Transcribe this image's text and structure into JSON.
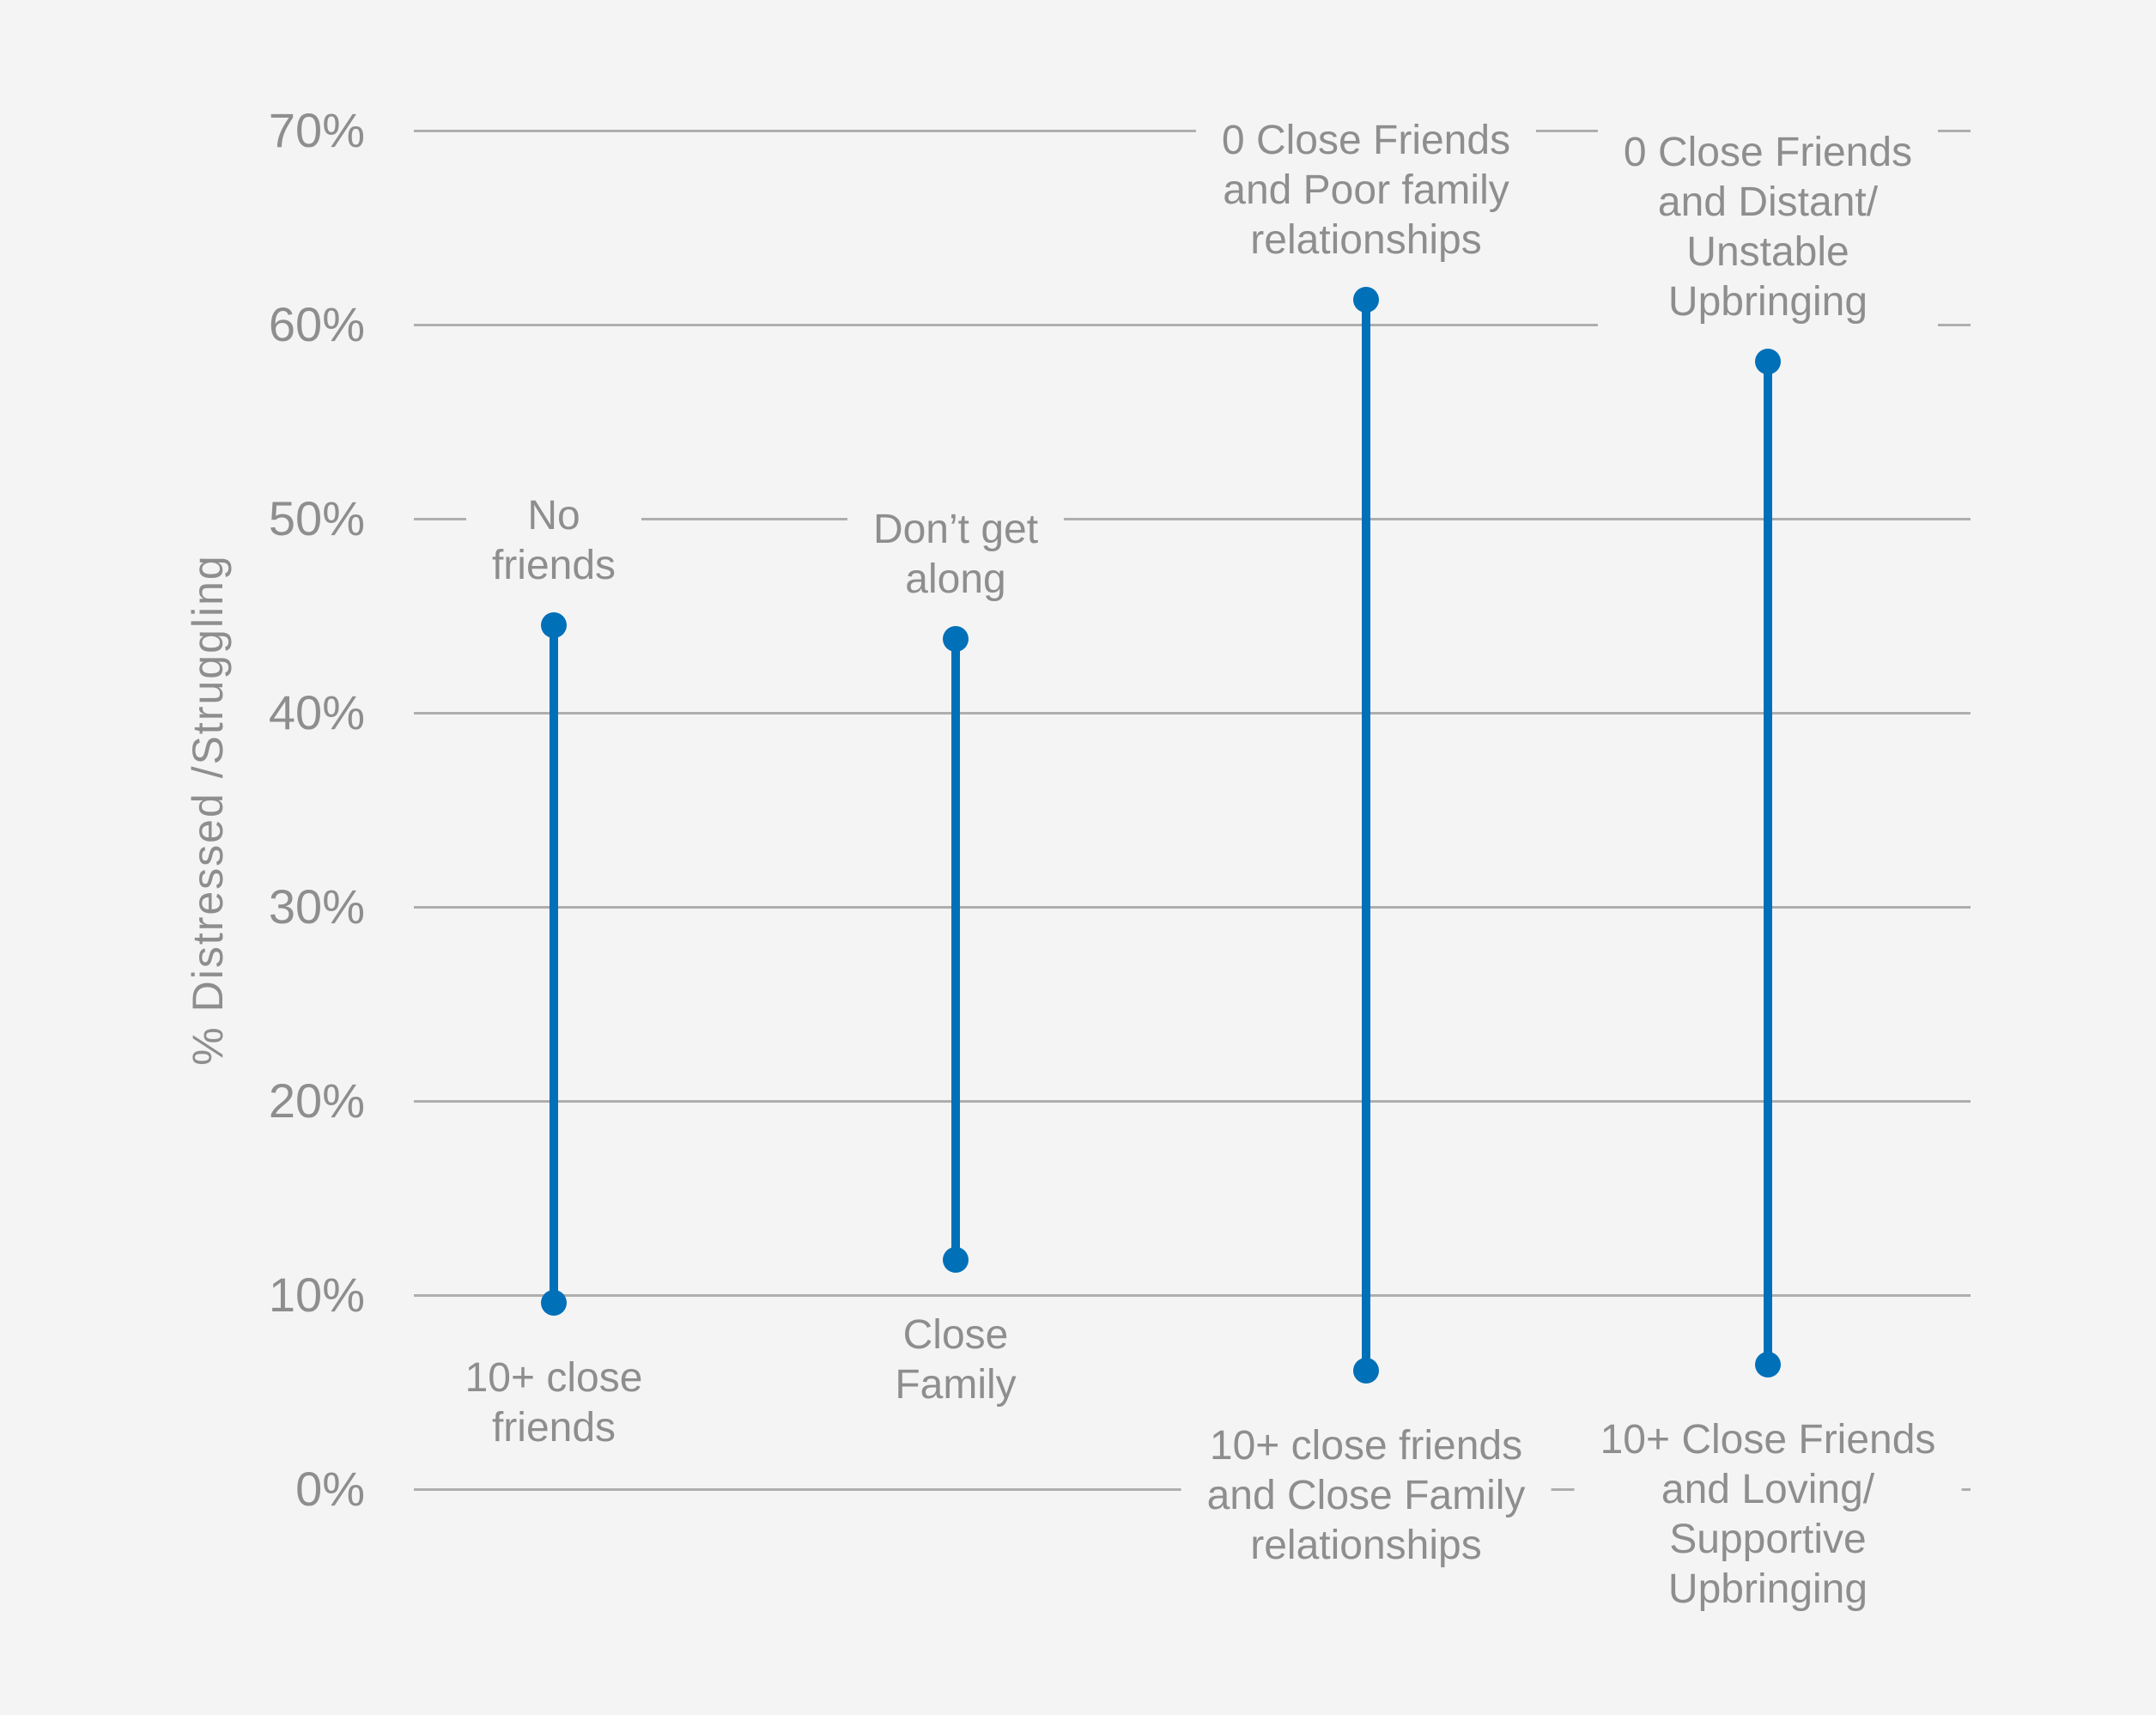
{
  "chart_data": {
    "type": "scatter",
    "variant": "vertical-dumbbell-range",
    "title": "",
    "xlabel": "",
    "ylabel": "% Distressed /Struggling",
    "ylim": [
      0,
      70
    ],
    "grid": "horizontal",
    "legend": "none",
    "unit": "%",
    "yticks": [
      {
        "label": "0%",
        "value": 0
      },
      {
        "label": "10%",
        "value": 10
      },
      {
        "label": "20%",
        "value": 20
      },
      {
        "label": "30%",
        "value": 30
      },
      {
        "label": "40%",
        "value": 40
      },
      {
        "label": "50%",
        "value": 50
      },
      {
        "label": "60%",
        "value": 60
      },
      {
        "label": "70%",
        "value": 70
      }
    ],
    "groups": [
      {
        "high": 44.5,
        "high_label": "No friends",
        "high_label_lines": [
          "No",
          "friends"
        ],
        "low": 9.6,
        "low_label": "10+ close friends",
        "low_label_lines": [
          "10+ close",
          "friends"
        ]
      },
      {
        "high": 43.8,
        "high_label": "Don’t get along",
        "high_label_lines": [
          "Don’t get",
          "along"
        ],
        "low": 11.8,
        "low_label": "Close Family",
        "low_label_lines": [
          "Close",
          "Family"
        ]
      },
      {
        "high": 61.3,
        "high_label": "0 Close Friends and Poor family relationships",
        "high_label_lines": [
          "0 Close Friends",
          "and Poor family",
          "relationships"
        ],
        "low": 6.1,
        "low_label": "10+ close friends and Close Family relationships",
        "low_label_lines": [
          "10+ close friends",
          "and Close Family",
          "relationships"
        ]
      },
      {
        "high": 58.1,
        "high_label": "0 Close Friends and Distant/Unstable Upbringing",
        "high_label_lines": [
          "0 Close Friends",
          "and Distant/",
          "Unstable",
          "Upbringing"
        ],
        "low": 6.4,
        "low_label": "10+ Close Friends and Loving/Supportive Upbringing",
        "low_label_lines": [
          "10+ Close Friends",
          "and Loving/",
          "Supportive",
          "Upbringing"
        ]
      }
    ],
    "colors": {
      "point": "#0070b8",
      "background": "#f4f4f4",
      "gridline": "#aeaeae",
      "text": "#8e8e8e"
    }
  }
}
